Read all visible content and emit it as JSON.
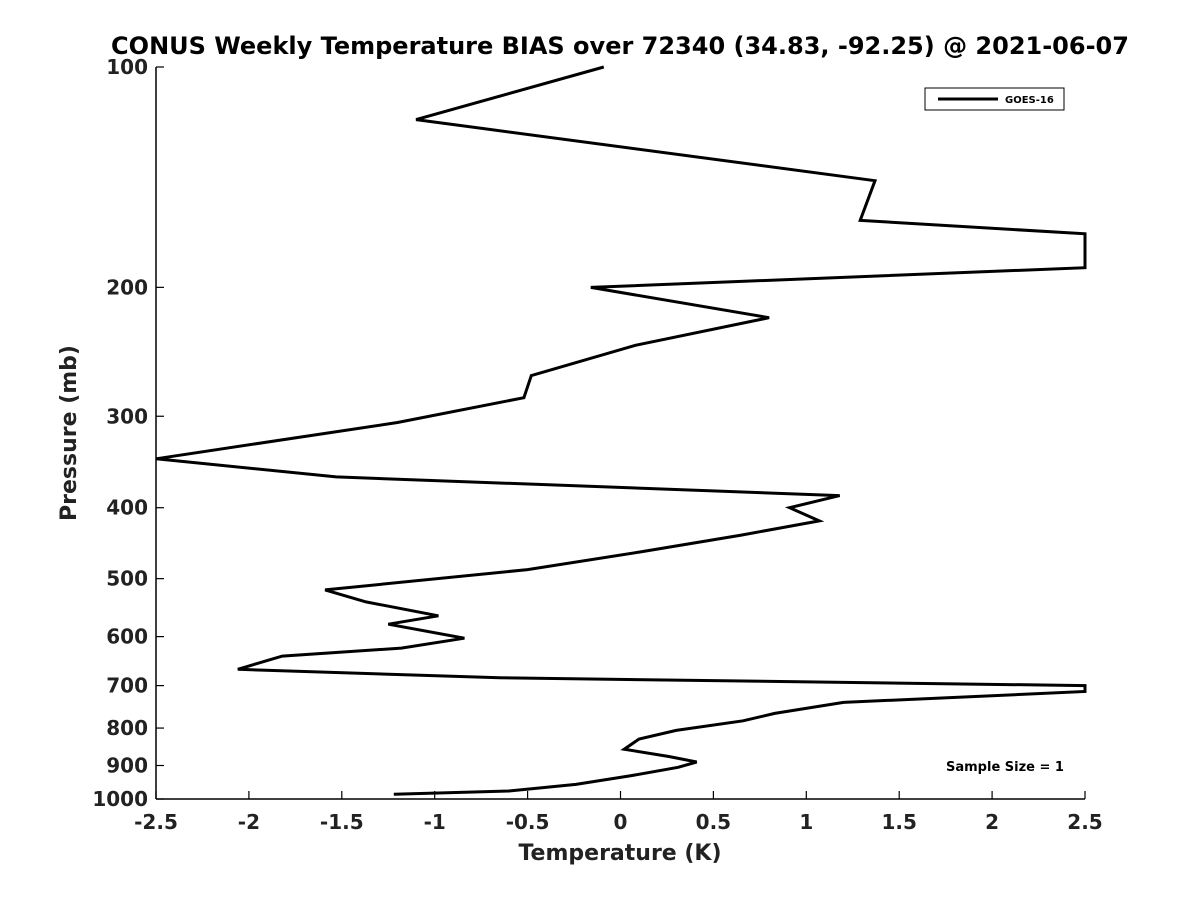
{
  "chart_data": {
    "type": "line",
    "title": "CONUS Weekly Temperature BIAS over 72340 (34.83, -92.25) @ 2021-06-07",
    "xlabel": "Temperature (K)",
    "ylabel": "Pressure (mb)",
    "xlim": [
      -2.5,
      2.5
    ],
    "ylim": [
      1000,
      100
    ],
    "y_scale": "log",
    "y_reversed": true,
    "x_ticks": [
      "-2.5",
      "-2",
      "-1.5",
      "-1",
      "-0.5",
      "0",
      "0.5",
      "1",
      "1.5",
      "2",
      "2.5"
    ],
    "x_tick_values": [
      -2.5,
      -2,
      -1.5,
      -1,
      -0.5,
      0,
      0.5,
      1,
      1.5,
      2,
      2.5
    ],
    "y_ticks": [
      "100",
      "200",
      "300",
      "400",
      "500",
      "600",
      "700",
      "800",
      "900",
      "1000"
    ],
    "y_tick_values": [
      100,
      200,
      300,
      400,
      500,
      600,
      700,
      800,
      900,
      1000
    ],
    "grid": false,
    "legend_position": "top-right",
    "series": [
      {
        "name": "GOES-16",
        "color": "#000000",
        "points": [
          {
            "x": -0.09,
            "p": 100
          },
          {
            "x": -1.1,
            "p": 118
          },
          {
            "x": 1.37,
            "p": 143
          },
          {
            "x": 1.29,
            "p": 162
          },
          {
            "x": 2.5,
            "p": 169
          },
          {
            "x": 2.5,
            "p": 188
          },
          {
            "x": -0.16,
            "p": 200
          },
          {
            "x": 0.8,
            "p": 220
          },
          {
            "x": 0.08,
            "p": 240
          },
          {
            "x": -0.48,
            "p": 264
          },
          {
            "x": -0.52,
            "p": 283
          },
          {
            "x": -1.2,
            "p": 306
          },
          {
            "x": -2.5,
            "p": 343
          },
          {
            "x": -1.53,
            "p": 363
          },
          {
            "x": 1.18,
            "p": 385
          },
          {
            "x": 0.91,
            "p": 400
          },
          {
            "x": 1.07,
            "p": 417
          },
          {
            "x": 0.65,
            "p": 436
          },
          {
            "x": 0.1,
            "p": 460
          },
          {
            "x": -0.5,
            "p": 486
          },
          {
            "x": -1.59,
            "p": 518
          },
          {
            "x": -1.37,
            "p": 538
          },
          {
            "x": -0.98,
            "p": 562
          },
          {
            "x": -1.25,
            "p": 577
          },
          {
            "x": -0.84,
            "p": 603
          },
          {
            "x": -1.18,
            "p": 622
          },
          {
            "x": -1.82,
            "p": 638
          },
          {
            "x": -2.06,
            "p": 665
          },
          {
            "x": -0.65,
            "p": 683
          },
          {
            "x": 2.5,
            "p": 700
          },
          {
            "x": 2.5,
            "p": 713
          },
          {
            "x": 1.2,
            "p": 738
          },
          {
            "x": 0.83,
            "p": 764
          },
          {
            "x": 0.66,
            "p": 782
          },
          {
            "x": 0.3,
            "p": 806
          },
          {
            "x": 0.1,
            "p": 828
          },
          {
            "x": 0.02,
            "p": 855
          },
          {
            "x": 0.26,
            "p": 875
          },
          {
            "x": 0.41,
            "p": 890
          },
          {
            "x": 0.31,
            "p": 905
          },
          {
            "x": 0.05,
            "p": 930
          },
          {
            "x": -0.24,
            "p": 955
          },
          {
            "x": -0.6,
            "p": 975
          },
          {
            "x": -1.22,
            "p": 985
          }
        ]
      }
    ],
    "annotations": [
      {
        "text": "Sample Size = 1",
        "position": "bottom-right"
      }
    ]
  }
}
